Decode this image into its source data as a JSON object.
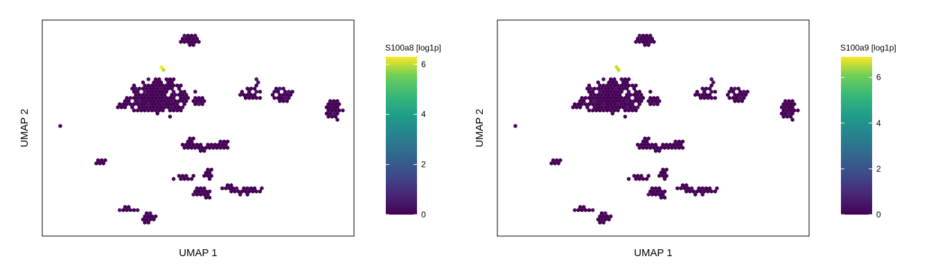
{
  "chart_data": [
    {
      "type": "hexbin",
      "xlabel": "UMAP 1",
      "ylabel": "UMAP 2",
      "colorbar": {
        "title": "S100a8 [log1p]",
        "ticks": [
          "0",
          "2",
          "4",
          "6"
        ],
        "range": [
          0,
          6.3
        ],
        "colormap": "viridis"
      },
      "max_value": 6.3,
      "hotspot_value": 6.2
    },
    {
      "type": "hexbin",
      "xlabel": "UMAP 1",
      "ylabel": "UMAP 2",
      "colorbar": {
        "title": "S100a9 [log1p]",
        "ticks": [
          "0",
          "2",
          "4",
          "6"
        ],
        "range": [
          0,
          6.9
        ],
        "colormap": "viridis"
      },
      "max_value": 6.9,
      "hotspot_value": 6.5
    }
  ],
  "colors": {
    "low": "#440154",
    "high": "#fde725"
  }
}
